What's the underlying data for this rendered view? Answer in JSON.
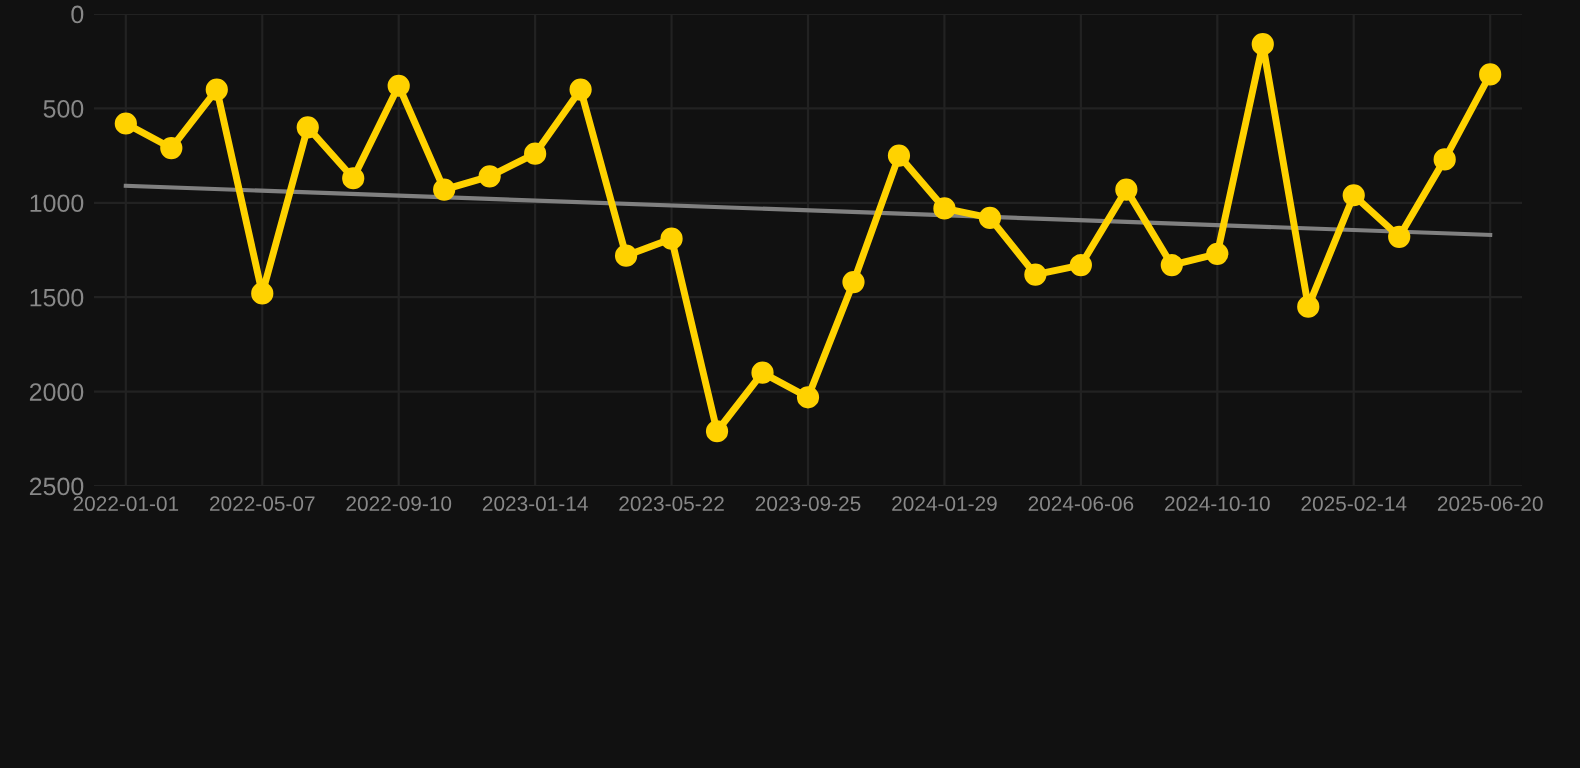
{
  "chart_data": {
    "type": "line",
    "categories": [
      "2022-01-01",
      null,
      null,
      "2022-05-07",
      null,
      null,
      "2022-09-10",
      null,
      null,
      "2023-01-14",
      null,
      null,
      "2023-05-22",
      null,
      null,
      "2023-09-25",
      null,
      null,
      "2024-01-29",
      null,
      null,
      "2024-06-06",
      null,
      null,
      "2024-10-10",
      null,
      null,
      "2025-02-14",
      null,
      null,
      "2025-06-20"
    ],
    "series": [
      {
        "color": "#ffd200",
        "marker": "circle",
        "values": [
          580,
          710,
          400,
          1480,
          600,
          870,
          380,
          930,
          860,
          740,
          400,
          1280,
          1190,
          2210,
          1900,
          2030,
          1420,
          750,
          1030,
          1080,
          1380,
          1330,
          930,
          1330,
          1270,
          160,
          1550,
          960,
          1180,
          770,
          320
        ]
      },
      {
        "type": "line",
        "color": "#808080",
        "marker": "none",
        "values": [
          910,
          null,
          null,
          null,
          null,
          null,
          null,
          null,
          null,
          null,
          null,
          null,
          null,
          null,
          null,
          null,
          null,
          null,
          null,
          null,
          null,
          null,
          null,
          null,
          null,
          null,
          null,
          null,
          null,
          null,
          1170
        ]
      }
    ],
    "ylim": [
      2500,
      0
    ],
    "yticks": [
      0,
      500,
      1000,
      1500,
      2000,
      2500
    ],
    "grid": true
  }
}
